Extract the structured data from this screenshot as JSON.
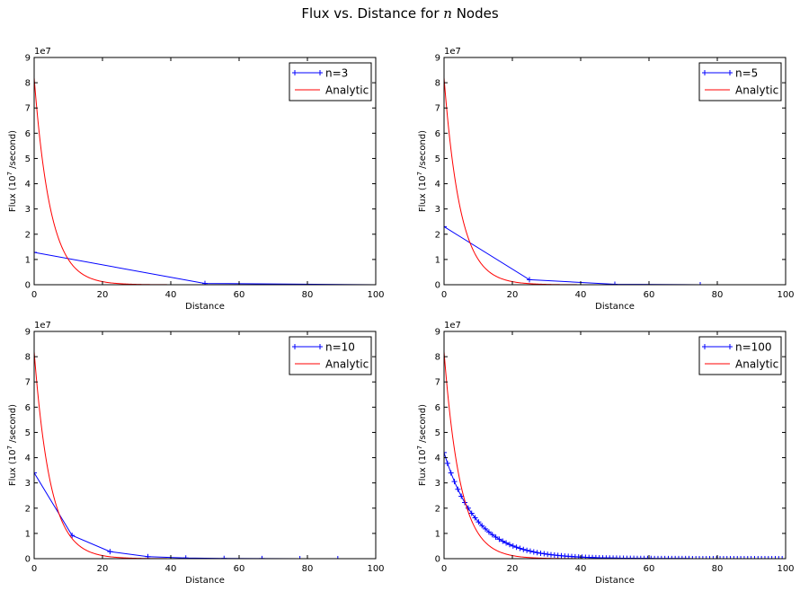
{
  "title": {
    "prefix": "Flux vs. Distance for ",
    "variable": "n",
    "suffix": " Nodes"
  },
  "colors": {
    "numeric": "#0000ff",
    "analytic": "#ff0000",
    "axes": "#000000"
  },
  "chart_data": [
    {
      "type": "line",
      "xlabel": "Distance",
      "ylabel": "Flux (10^7 /second)",
      "ylabel_parts": {
        "base": "Flux (10",
        "exp": "7",
        "rest": " /second)"
      },
      "y_offset_text": "1e7",
      "xlim": [
        0,
        100
      ],
      "ylim": [
        0,
        90000000
      ],
      "x_ticks": [
        0,
        20,
        40,
        60,
        80,
        100
      ],
      "x_tick_labels": [
        "0",
        "20",
        "40",
        "60",
        "80",
        "100"
      ],
      "y_ticks": [
        0,
        10000000,
        20000000,
        30000000,
        40000000,
        50000000,
        60000000,
        70000000,
        80000000,
        90000000
      ],
      "y_tick_labels": [
        "0",
        "1",
        "2",
        "3",
        "4",
        "5",
        "6",
        "7",
        "8",
        "9"
      ],
      "legend_position": "top-right",
      "series": [
        {
          "name": "n=3",
          "style": "line-plus-markers",
          "n": 3,
          "x": [
            0,
            50,
            100
          ],
          "y": [
            12800000,
            500000,
            0
          ]
        },
        {
          "name": "Analytic",
          "style": "line",
          "a0": 82000000,
          "decay": 0.21
        }
      ]
    },
    {
      "type": "line",
      "xlabel": "Distance",
      "ylabel": "Flux (10^7 /second)",
      "ylabel_parts": {
        "base": "Flux (10",
        "exp": "7",
        "rest": " /second)"
      },
      "y_offset_text": "1e7",
      "xlim": [
        0,
        100
      ],
      "ylim": [
        0,
        90000000
      ],
      "x_ticks": [
        0,
        20,
        40,
        60,
        80,
        100
      ],
      "x_tick_labels": [
        "0",
        "20",
        "40",
        "60",
        "80",
        "100"
      ],
      "y_ticks": [
        0,
        10000000,
        20000000,
        30000000,
        40000000,
        50000000,
        60000000,
        70000000,
        80000000,
        90000000
      ],
      "y_tick_labels": [
        "0",
        "1",
        "2",
        "3",
        "4",
        "5",
        "6",
        "7",
        "8",
        "9"
      ],
      "legend_position": "top-right",
      "series": [
        {
          "name": "n=5",
          "style": "line-plus-markers",
          "n": 5,
          "x": [
            0,
            25,
            50,
            75,
            100
          ],
          "y": [
            23000000,
            2000000,
            200000,
            20000,
            0
          ]
        },
        {
          "name": "Analytic",
          "style": "line",
          "a0": 82000000,
          "decay": 0.21
        }
      ]
    },
    {
      "type": "line",
      "xlabel": "Distance",
      "ylabel": "Flux (10^7 /second)",
      "ylabel_parts": {
        "base": "Flux (10",
        "exp": "7",
        "rest": " /second)"
      },
      "y_offset_text": "1e7",
      "xlim": [
        0,
        100
      ],
      "ylim": [
        0,
        90000000
      ],
      "x_ticks": [
        0,
        20,
        40,
        60,
        80,
        100
      ],
      "x_tick_labels": [
        "0",
        "20",
        "40",
        "60",
        "80",
        "100"
      ],
      "y_ticks": [
        0,
        10000000,
        20000000,
        30000000,
        40000000,
        50000000,
        60000000,
        70000000,
        80000000,
        90000000
      ],
      "y_tick_labels": [
        "0",
        "1",
        "2",
        "3",
        "4",
        "5",
        "6",
        "7",
        "8",
        "9"
      ],
      "legend_position": "top-right",
      "series": [
        {
          "name": "n=10",
          "style": "line-plus-markers",
          "n": 10,
          "x": [
            0,
            11.1,
            22.2,
            33.3,
            44.4,
            55.6,
            66.7,
            77.8,
            88.9,
            100
          ],
          "y": [
            34000000,
            9200000,
            2800000,
            800000,
            250000,
            80000,
            25000,
            8000,
            2000,
            0
          ]
        },
        {
          "name": "Analytic",
          "style": "line",
          "a0": 82000000,
          "decay": 0.21
        }
      ]
    },
    {
      "type": "line",
      "xlabel": "Distance",
      "ylabel": "Flux (10^7 /second)",
      "ylabel_parts": {
        "base": "Flux (10",
        "exp": "7",
        "rest": " /second)"
      },
      "y_offset_text": "1e7",
      "xlim": [
        0,
        100
      ],
      "ylim": [
        0,
        90000000
      ],
      "x_ticks": [
        0,
        20,
        40,
        60,
        80,
        100
      ],
      "x_tick_labels": [
        "0",
        "20",
        "40",
        "60",
        "80",
        "100"
      ],
      "y_ticks": [
        0,
        10000000,
        20000000,
        30000000,
        40000000,
        50000000,
        60000000,
        70000000,
        80000000,
        90000000
      ],
      "y_tick_labels": [
        "0",
        "1",
        "2",
        "3",
        "4",
        "5",
        "6",
        "7",
        "8",
        "9"
      ],
      "legend_position": "top-right",
      "series": [
        {
          "name": "n=100",
          "style": "line-plus-markers",
          "n": 100,
          "a0": 42000000,
          "decay": 0.105
        },
        {
          "name": "Analytic",
          "style": "line",
          "a0": 82000000,
          "decay": 0.21
        }
      ]
    }
  ]
}
